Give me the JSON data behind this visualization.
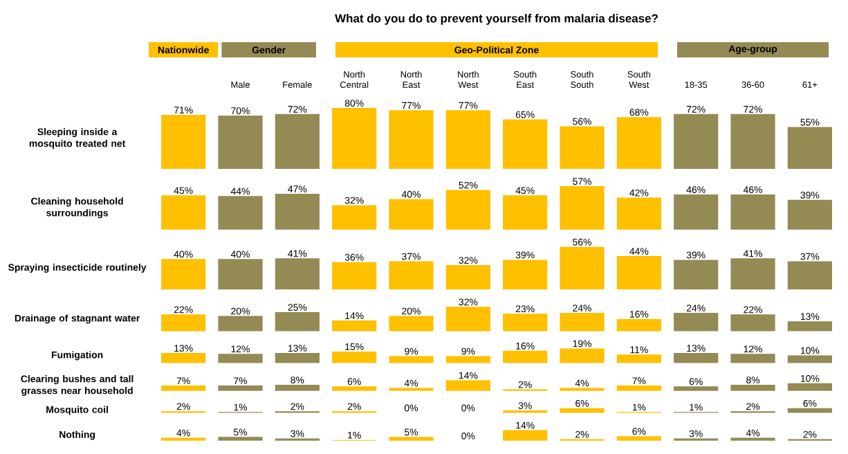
{
  "chart_data": [
    {
      "type": "bar",
      "title": "What do you do to prevent yourself from malaria disease?",
      "annotations": [
        "Nationwide",
        "Gender",
        "Geo-Political  Zone",
        "Age-group"
      ],
      "tick_labels": "x",
      "ylabel": "Sleeping inside a mosquito treated net",
      "categories": [
        null,
        "Male",
        "Female",
        "North Central",
        "North East",
        "North West",
        "South East",
        "South South",
        "South West",
        "18-35",
        "36-60",
        "61+"
      ],
      "values": [
        71,
        70,
        72,
        80,
        77,
        77,
        65,
        56,
        68,
        72,
        72,
        55
      ],
      "value_labels": [
        "71%",
        "70%",
        "72%",
        "80%",
        "77%",
        "77%",
        "65%",
        "56%",
        "68%",
        "72%",
        "72%",
        "55%"
      ],
      "colors": [
        "#ffc000",
        "#948a54",
        "#948a54",
        "#ffc000",
        "#ffc000",
        "#ffc000",
        "#ffc000",
        "#ffc000",
        "#ffc000",
        "#948a54",
        "#948a54",
        "#948a54"
      ]
    },
    {
      "type": "bar",
      "tick_labels": false,
      "ylabel": "Cleaning household surroundings",
      "categories": [
        null,
        null,
        null,
        null,
        null,
        null,
        null,
        null,
        null,
        null,
        null,
        null
      ],
      "values": [
        45,
        44,
        47,
        32,
        40,
        52,
        45,
        57,
        42,
        46,
        46,
        39
      ],
      "value_labels": [
        "45%",
        "44%",
        "47%",
        "32%",
        "40%",
        "52%",
        "45%",
        "57%",
        "42%",
        "46%",
        "46%",
        "39%"
      ],
      "colors": [
        "#ffc000",
        "#948a54",
        "#948a54",
        "#ffc000",
        "#ffc000",
        "#ffc000",
        "#ffc000",
        "#ffc000",
        "#ffc000",
        "#948a54",
        "#948a54",
        "#948a54"
      ]
    },
    {
      "type": "bar",
      "tick_labels": false,
      "ylabel": "Spraying insecticide routinely",
      "categories": [
        null,
        null,
        null,
        null,
        null,
        null,
        null,
        null,
        null,
        null,
        null,
        null
      ],
      "values": [
        40,
        40,
        41,
        36,
        37,
        32,
        39,
        56,
        44,
        39,
        41,
        37
      ],
      "value_labels": [
        "40%",
        "40%",
        "41%",
        "36%",
        "37%",
        "32%",
        "39%",
        "56%",
        "44%",
        "39%",
        "41%",
        "37%"
      ],
      "colors": [
        "#ffc000",
        "#948a54",
        "#948a54",
        "#ffc000",
        "#ffc000",
        "#ffc000",
        "#ffc000",
        "#ffc000",
        "#ffc000",
        "#948a54",
        "#948a54",
        "#948a54"
      ]
    },
    {
      "type": "bar",
      "tick_labels": false,
      "ylabel": "Drainage of stagnant water",
      "categories": [
        null,
        null,
        null,
        null,
        null,
        null,
        null,
        null,
        null,
        null,
        null,
        null
      ],
      "values": [
        22,
        20,
        25,
        14,
        20,
        32,
        23,
        24,
        16,
        24,
        22,
        13
      ],
      "value_labels": [
        "22%",
        "20%",
        "25%",
        "14%",
        "20%",
        "32%",
        "23%",
        "24%",
        "16%",
        "24%",
        "22%",
        "13%"
      ],
      "colors": [
        "#ffc000",
        "#948a54",
        "#948a54",
        "#ffc000",
        "#ffc000",
        "#ffc000",
        "#ffc000",
        "#ffc000",
        "#ffc000",
        "#948a54",
        "#948a54",
        "#948a54"
      ]
    },
    {
      "type": "bar",
      "tick_labels": false,
      "ylabel": "Fumigation",
      "categories": [
        null,
        null,
        null,
        null,
        null,
        null,
        null,
        null,
        null,
        null,
        null,
        null
      ],
      "values": [
        13,
        12,
        13,
        15,
        9,
        9,
        16,
        19,
        11,
        13,
        12,
        10
      ],
      "value_labels": [
        "13%",
        "12%",
        "13%",
        "15%",
        "9%",
        "9%",
        "16%",
        "19%",
        "11%",
        "13%",
        "12%",
        "10%"
      ],
      "colors": [
        "#ffc000",
        "#948a54",
        "#948a54",
        "#ffc000",
        "#ffc000",
        "#ffc000",
        "#ffc000",
        "#ffc000",
        "#ffc000",
        "#948a54",
        "#948a54",
        "#948a54"
      ]
    },
    {
      "type": "bar",
      "tick_labels": false,
      "ylabel": "Clearing bushes and tall grasses near household",
      "categories": [
        null,
        null,
        null,
        null,
        null,
        null,
        null,
        null,
        null,
        null,
        null,
        null
      ],
      "values": [
        7,
        7,
        8,
        6,
        4,
        14,
        2,
        4,
        7,
        6,
        8,
        10
      ],
      "value_labels": [
        "7%",
        "7%",
        "8%",
        "6%",
        "4%",
        "14%",
        "2%",
        "4%",
        "7%",
        "6%",
        "8%",
        "10%"
      ],
      "colors": [
        "#ffc000",
        "#948a54",
        "#948a54",
        "#ffc000",
        "#ffc000",
        "#ffc000",
        "#ffc000",
        "#ffc000",
        "#ffc000",
        "#948a54",
        "#948a54",
        "#948a54"
      ]
    },
    {
      "type": "bar",
      "tick_labels": false,
      "ylabel": "Mosquito coil",
      "categories": [
        null,
        null,
        null,
        null,
        null,
        null,
        null,
        null,
        null,
        null,
        null,
        null
      ],
      "values": [
        2,
        1,
        2,
        2,
        0,
        0,
        3,
        6,
        1,
        1,
        2,
        6
      ],
      "value_labels": [
        "2%",
        "1%",
        "2%",
        "2%",
        "0%",
        "0%",
        "3%",
        "6%",
        "1%",
        "1%",
        "2%",
        "6%"
      ],
      "colors": [
        "#ffc000",
        "#948a54",
        "#948a54",
        "#ffc000",
        "#ffc000",
        "#ffc000",
        "#ffc000",
        "#ffc000",
        "#ffc000",
        "#948a54",
        "#948a54",
        "#948a54"
      ]
    },
    {
      "type": "bar",
      "tick_labels": false,
      "ylabel": "Nothing",
      "categories": [
        null,
        null,
        null,
        null,
        null,
        null,
        null,
        null,
        null,
        null,
        null,
        null
      ],
      "values": [
        4,
        5,
        3,
        1,
        5,
        0,
        14,
        2,
        6,
        3,
        4,
        2
      ],
      "value_labels": [
        "4%",
        "5%",
        "3%",
        "1%",
        "5%",
        "0%",
        "14%",
        "2%",
        "6%",
        "3%",
        "4%",
        "2%"
      ],
      "colors": [
        "#ffc000",
        "#948a54",
        "#948a54",
        "#ffc000",
        "#ffc000",
        "#ffc000",
        "#ffc000",
        "#ffc000",
        "#ffc000",
        "#948a54",
        "#948a54",
        "#948a54"
      ]
    }
  ]
}
